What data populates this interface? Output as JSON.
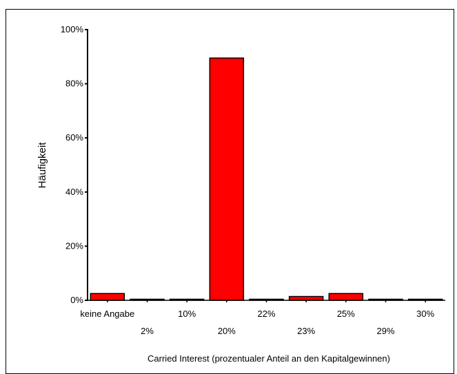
{
  "chart_data": {
    "type": "bar",
    "xlabel": "Carried Interest (prozentualer Anteil an den Kapitalgewinnen)",
    "ylabel": "Häufigkeit",
    "ylim": [
      0,
      100
    ],
    "yticks": [
      "0%",
      "20%",
      "40%",
      "60%",
      "80%",
      "100%"
    ],
    "categories": [
      "keine Angabe",
      "2%",
      "10%",
      "20%",
      "22%",
      "23%",
      "25%",
      "29%",
      "30%"
    ],
    "values": [
      2.5,
      0.4,
      0.4,
      89.5,
      0.4,
      1.4,
      2.5,
      0.4,
      0.4
    ],
    "bar_color": "#ff0000",
    "grid": false,
    "legend": "none"
  }
}
